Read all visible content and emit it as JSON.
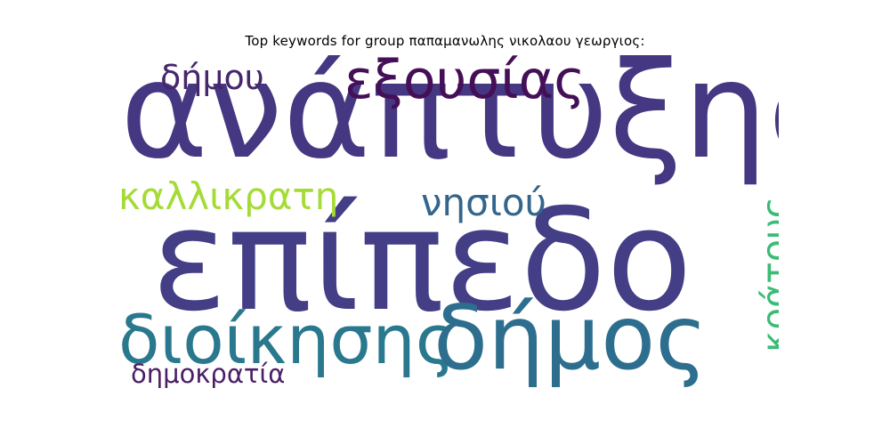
{
  "title": "Top keywords for group παπαμανωλης νικολαου γεωργιος:",
  "words": [
    {
      "id": "anaptyxis",
      "text": "ανάπτυξης",
      "color": "#453781",
      "orientation": "horizontal"
    },
    {
      "id": "epipedo",
      "text": "επίπεδο",
      "color": "#433E85",
      "orientation": "horizontal"
    },
    {
      "id": "dioikisis",
      "text": "διοίκησης",
      "color": "#2A788E",
      "orientation": "horizontal"
    },
    {
      "id": "dimos",
      "text": "δήμος",
      "color": "#2D6E8E",
      "orientation": "horizontal"
    },
    {
      "id": "exousias",
      "text": "εξουσίας",
      "color": "#440F56",
      "orientation": "horizontal"
    },
    {
      "id": "dimou",
      "text": "δήμου",
      "color": "#46276C",
      "orientation": "horizontal"
    },
    {
      "id": "kallikratis",
      "text": "καλλικρατη",
      "color": "#A5DB36",
      "orientation": "horizontal"
    },
    {
      "id": "nisiou",
      "text": "νησιού",
      "color": "#33658D",
      "orientation": "horizontal"
    },
    {
      "id": "kratous",
      "text": "κράτους",
      "color": "#3BBB75",
      "orientation": "vertical"
    },
    {
      "id": "dimokratia",
      "text": "δημοκρατία",
      "color": "#4A1F66",
      "orientation": "horizontal"
    }
  ]
}
